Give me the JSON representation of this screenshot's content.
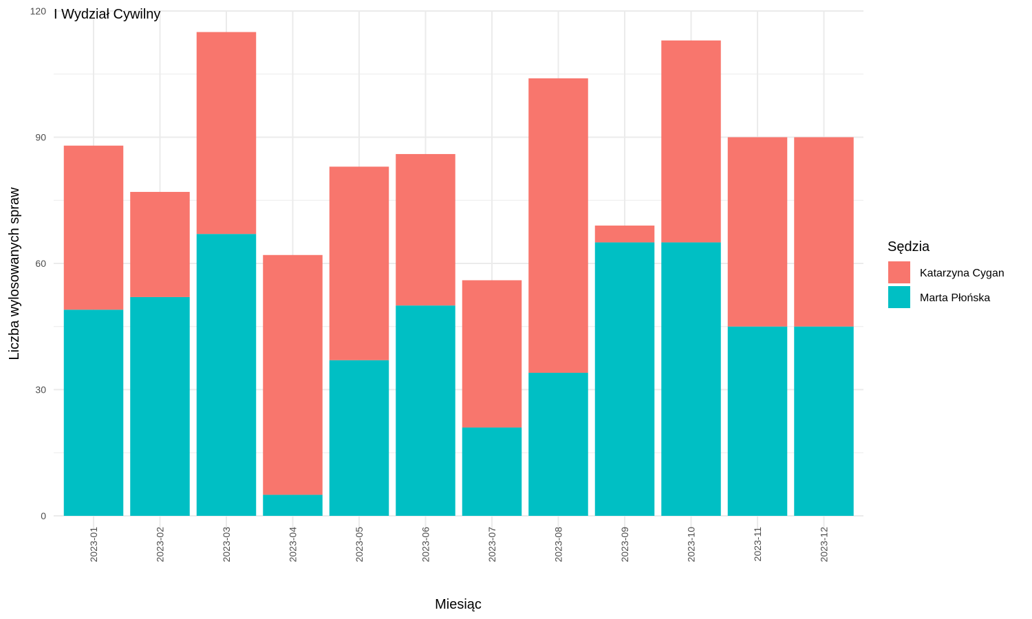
{
  "chart_data": {
    "type": "bar",
    "stacked": true,
    "title": "I Wydział Cywilny",
    "xlabel": "Miesiąc",
    "ylabel": "Liczba wylosowanych spraw",
    "ylim": [
      0,
      120
    ],
    "yticks": [
      0,
      30,
      60,
      90,
      120
    ],
    "grid": true,
    "legend_position": "right",
    "legend_title": "Sędzia",
    "categories": [
      "2023-01",
      "2023-02",
      "2023-03",
      "2023-04",
      "2023-05",
      "2023-06",
      "2023-07",
      "2023-08",
      "2023-09",
      "2023-10",
      "2023-11",
      "2023-12"
    ],
    "series": [
      {
        "name": "Katarzyna Cygan",
        "color": "#F8766D",
        "values": [
          39,
          25,
          48,
          57,
          46,
          36,
          35,
          70,
          4,
          48,
          45,
          45
        ]
      },
      {
        "name": "Marta Płońska",
        "color": "#00BFC4",
        "values": [
          49,
          52,
          67,
          5,
          37,
          50,
          21,
          34,
          65,
          65,
          45,
          45
        ]
      }
    ]
  }
}
